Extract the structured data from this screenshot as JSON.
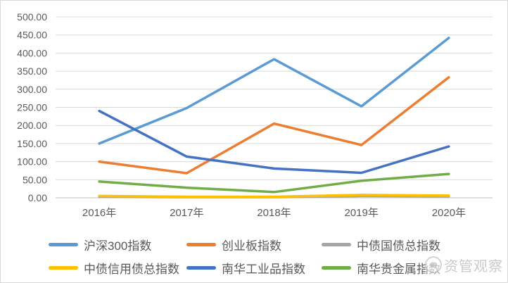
{
  "chart_data": {
    "type": "line",
    "title": "",
    "categories": [
      "2016年",
      "2017年",
      "2018年",
      "2019年",
      "2020年"
    ],
    "series": [
      {
        "name": "沪深300指数",
        "color": "#5B9BD5",
        "values": [
          150,
          248,
          383,
          253,
          442
        ]
      },
      {
        "name": "创业板指数",
        "color": "#ED7D31",
        "values": [
          100,
          68,
          205,
          146,
          333
        ]
      },
      {
        "name": "中债国债总指数",
        "color": "#A5A5A5",
        "values": [
          3,
          2,
          2,
          5,
          4
        ]
      },
      {
        "name": "中债信用债总指数",
        "color": "#FFC000",
        "values": [
          5,
          3,
          3,
          8,
          6
        ]
      },
      {
        "name": "南华工业品指数",
        "color": "#4472C4",
        "values": [
          240,
          114,
          81,
          69,
          142
        ]
      },
      {
        "name": "南华贵金属指数",
        "color": "#70AD47",
        "values": [
          45,
          28,
          16,
          47,
          66
        ]
      }
    ],
    "ylim": [
      0,
      500
    ],
    "ytick_step": 50,
    "yticks": [
      "500.00",
      "450.00",
      "400.00",
      "350.00",
      "300.00",
      "250.00",
      "200.00",
      "150.00",
      "100.00",
      "50.00",
      "0.00"
    ],
    "grid": true,
    "grid_color": "#D9D9D9",
    "axis_line_color": "#BFBFBF",
    "text_color": "#595959",
    "legend_position": "bottom"
  },
  "watermark": {
    "text": "资管观察",
    "logo": "round-mascot-logo"
  }
}
